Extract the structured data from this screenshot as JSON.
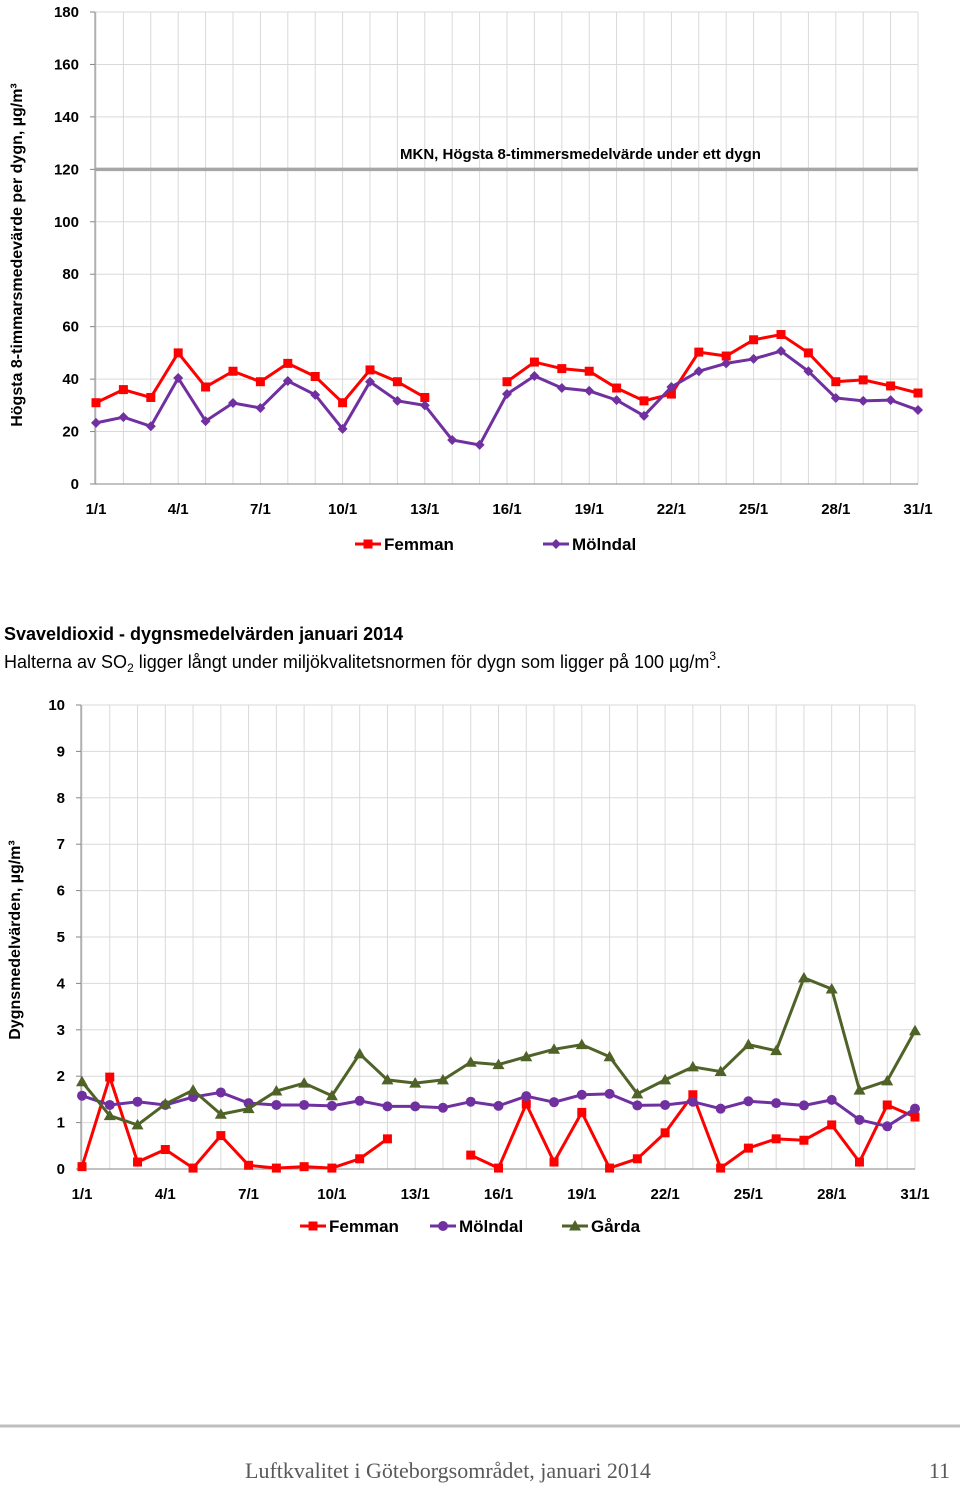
{
  "heading": "Svaveldioxid - dygnsmedelvärden januari 2014",
  "paragraph": [
    "Halterna av SO",
    "2",
    " ligger långt under miljökvalitetsnormen för dygn som ligger på 100 µg/m",
    "3",
    "."
  ],
  "footer": {
    "text": "Luftkvalitet i Göteborgsområdet, januari 2014",
    "page": "11"
  },
  "chart_data": [
    {
      "type": "line",
      "y_label": "Högsta 8-timmarsmedevärde per dygn, µg/m³",
      "categories": [
        "1/1",
        null,
        null,
        "4/1",
        null,
        null,
        "7/1",
        null,
        null,
        "10/1",
        null,
        null,
        "13/1",
        null,
        null,
        "16/1",
        null,
        null,
        "19/1",
        null,
        null,
        "22/1",
        null,
        null,
        "25/1",
        null,
        null,
        "28/1",
        null,
        null,
        "31/1"
      ],
      "ylim": [
        0,
        180
      ],
      "yticks": [
        0,
        20,
        40,
        60,
        80,
        100,
        120,
        140,
        160,
        180
      ],
      "grid": true,
      "reference_line": {
        "value": 120,
        "label": "MKN, Högsta 8-timmersmedelvärde under ett dygn",
        "color": "#a6a6a6"
      },
      "series": [
        {
          "name": "Femman",
          "color": "#ff0000",
          "marker": "square",
          "values": [
            31,
            36,
            33,
            50,
            37,
            43,
            39,
            46,
            41,
            31,
            43.5,
            39,
            33,
            null,
            null,
            39,
            46.5,
            44,
            43,
            36.6,
            31.7,
            34.3,
            50.3,
            48.8,
            55,
            57,
            50,
            39,
            39.7,
            37.4,
            34.7
          ]
        },
        {
          "name": "Mölndal",
          "color": "#7030a0",
          "marker": "diamond",
          "values": [
            23.3,
            25.5,
            22,
            40.4,
            24,
            30.9,
            29,
            39.3,
            34,
            21,
            39,
            31.7,
            30,
            16.8,
            14.9,
            34.3,
            41.2,
            36.6,
            35.5,
            32,
            26,
            37,
            43,
            46,
            47.7,
            50.7,
            43,
            32.8,
            31.7,
            32,
            28.2
          ]
        }
      ]
    },
    {
      "type": "line",
      "y_label": "Dygnsmedelvärden, µg/m³",
      "categories": [
        "1/1",
        null,
        null,
        "4/1",
        null,
        null,
        "7/1",
        null,
        null,
        "10/1",
        null,
        null,
        "13/1",
        null,
        null,
        "16/1",
        null,
        null,
        "19/1",
        null,
        null,
        "22/1",
        null,
        null,
        "25/1",
        null,
        null,
        "28/1",
        null,
        null,
        "31/1"
      ],
      "ylim": [
        0,
        10
      ],
      "yticks": [
        0,
        1,
        2,
        3,
        4,
        5,
        6,
        7,
        8,
        9,
        10
      ],
      "grid": true,
      "series": [
        {
          "name": "Femman",
          "color": "#ff0000",
          "marker": "square",
          "values": [
            0.05,
            1.98,
            0.15,
            0.42,
            0.02,
            0.72,
            0.08,
            0.02,
            0.05,
            0.02,
            0.22,
            0.65,
            null,
            null,
            0.3,
            0.02,
            1.4,
            0.15,
            1.22,
            0.02,
            0.22,
            0.78,
            1.6,
            0.02,
            0.45,
            0.65,
            0.62,
            0.95,
            0.15,
            1.38,
            1.12
          ]
        },
        {
          "name": "Mölndal",
          "color": "#7030a0",
          "marker": "circle",
          "values": [
            1.58,
            1.38,
            1.45,
            1.38,
            1.55,
            1.65,
            1.42,
            1.38,
            1.38,
            1.36,
            1.47,
            1.35,
            1.35,
            1.32,
            1.45,
            1.36,
            1.57,
            1.44,
            1.6,
            1.62,
            1.37,
            1.38,
            1.45,
            1.3,
            1.46,
            1.42,
            1.37,
            1.49,
            1.06,
            0.92,
            1.3
          ]
        },
        {
          "name": "Gårda",
          "color": "#4f6228",
          "marker": "triangle",
          "values": [
            1.88,
            1.15,
            0.95,
            1.4,
            1.7,
            1.18,
            1.3,
            1.68,
            1.85,
            1.58,
            2.48,
            1.92,
            1.85,
            1.92,
            2.3,
            2.25,
            2.42,
            2.58,
            2.68,
            2.42,
            1.62,
            1.92,
            2.2,
            2.1,
            2.68,
            2.55,
            4.12,
            3.88,
            1.7,
            1.9,
            2.98
          ]
        }
      ]
    }
  ]
}
